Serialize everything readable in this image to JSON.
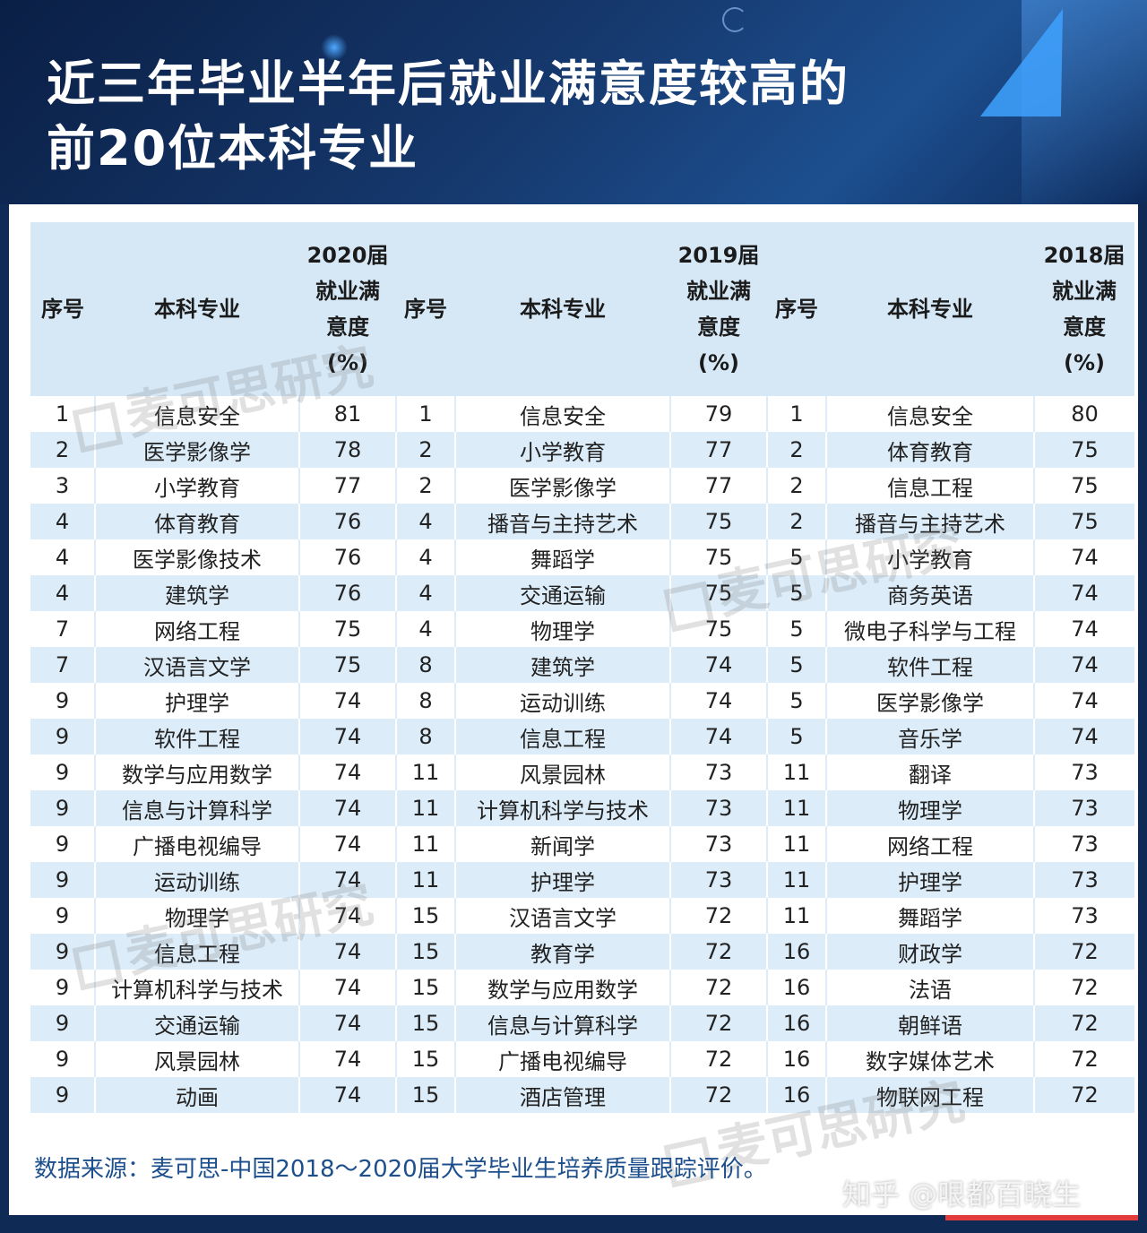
{
  "title": "近三年毕业半年后就业满意度较高的前20位本科专业",
  "title_line1": "近三年毕业半年后就业满意度较高的",
  "title_line2": "前20位本科专业",
  "table": {
    "headers": [
      "序号",
      "本科专业",
      "2020届就业满意度(%)",
      "序号",
      "本科专业",
      "2019届就业满意度(%)",
      "序号",
      "本科专业",
      "2018届就业满意度(%)"
    ],
    "rows": [
      [
        "1",
        "信息安全",
        "81",
        "1",
        "信息安全",
        "79",
        "1",
        "信息安全",
        "80"
      ],
      [
        "2",
        "医学影像学",
        "78",
        "2",
        "小学教育",
        "77",
        "2",
        "体育教育",
        "75"
      ],
      [
        "3",
        "小学教育",
        "77",
        "2",
        "医学影像学",
        "77",
        "2",
        "信息工程",
        "75"
      ],
      [
        "4",
        "体育教育",
        "76",
        "4",
        "播音与主持艺术",
        "75",
        "2",
        "播音与主持艺术",
        "75"
      ],
      [
        "4",
        "医学影像技术",
        "76",
        "4",
        "舞蹈学",
        "75",
        "5",
        "小学教育",
        "74"
      ],
      [
        "4",
        "建筑学",
        "76",
        "4",
        "交通运输",
        "75",
        "5",
        "商务英语",
        "74"
      ],
      [
        "7",
        "网络工程",
        "75",
        "4",
        "物理学",
        "75",
        "5",
        "微电子科学与工程",
        "74"
      ],
      [
        "7",
        "汉语言文学",
        "75",
        "8",
        "建筑学",
        "74",
        "5",
        "软件工程",
        "74"
      ],
      [
        "9",
        "护理学",
        "74",
        "8",
        "运动训练",
        "74",
        "5",
        "医学影像学",
        "74"
      ],
      [
        "9",
        "软件工程",
        "74",
        "8",
        "信息工程",
        "74",
        "5",
        "音乐学",
        "74"
      ],
      [
        "9",
        "数学与应用数学",
        "74",
        "11",
        "风景园林",
        "73",
        "11",
        "翻译",
        "73"
      ],
      [
        "9",
        "信息与计算科学",
        "74",
        "11",
        "计算机科学与技术",
        "73",
        "11",
        "物理学",
        "73"
      ],
      [
        "9",
        "广播电视编导",
        "74",
        "11",
        "新闻学",
        "73",
        "11",
        "网络工程",
        "73"
      ],
      [
        "9",
        "运动训练",
        "74",
        "11",
        "护理学",
        "73",
        "11",
        "护理学",
        "73"
      ],
      [
        "9",
        "物理学",
        "74",
        "15",
        "汉语言文学",
        "72",
        "11",
        "舞蹈学",
        "73"
      ],
      [
        "9",
        "信息工程",
        "74",
        "15",
        "教育学",
        "72",
        "16",
        "财政学",
        "72"
      ],
      [
        "9",
        "计算机科学与技术",
        "74",
        "15",
        "数学与应用数学",
        "72",
        "16",
        "法语",
        "72"
      ],
      [
        "9",
        "交通运输",
        "74",
        "15",
        "信息与计算科学",
        "72",
        "16",
        "朝鲜语",
        "72"
      ],
      [
        "9",
        "风景园林",
        "74",
        "15",
        "广播电视编导",
        "72",
        "16",
        "数字媒体艺术",
        "72"
      ],
      [
        "9",
        "动画",
        "74",
        "15",
        "酒店管理",
        "72",
        "16",
        "物联网工程",
        "72"
      ]
    ]
  },
  "header_cells": {
    "seq": "序号",
    "major": "本科专业",
    "y2020": [
      "2020届",
      "就业满",
      "意度",
      "(%)"
    ],
    "y2019": [
      "2019届",
      "就业满",
      "意度",
      "(%)"
    ],
    "y2018": [
      "2018届",
      "就业满",
      "意度",
      "(%)"
    ]
  },
  "source_note": "数据来源：麦可思-中国2018～2020届大学毕业生培养质量跟踪评价。",
  "watermark_text": "麦可思研究",
  "attribution": "知乎 @哏都百晓生",
  "colors": {
    "header_bg": "#0f2a55",
    "table_head": "#d6e8f6",
    "row_alt": "#dcecf8",
    "source_text": "#1c4f8c",
    "accent_red": "#e23b3b"
  }
}
